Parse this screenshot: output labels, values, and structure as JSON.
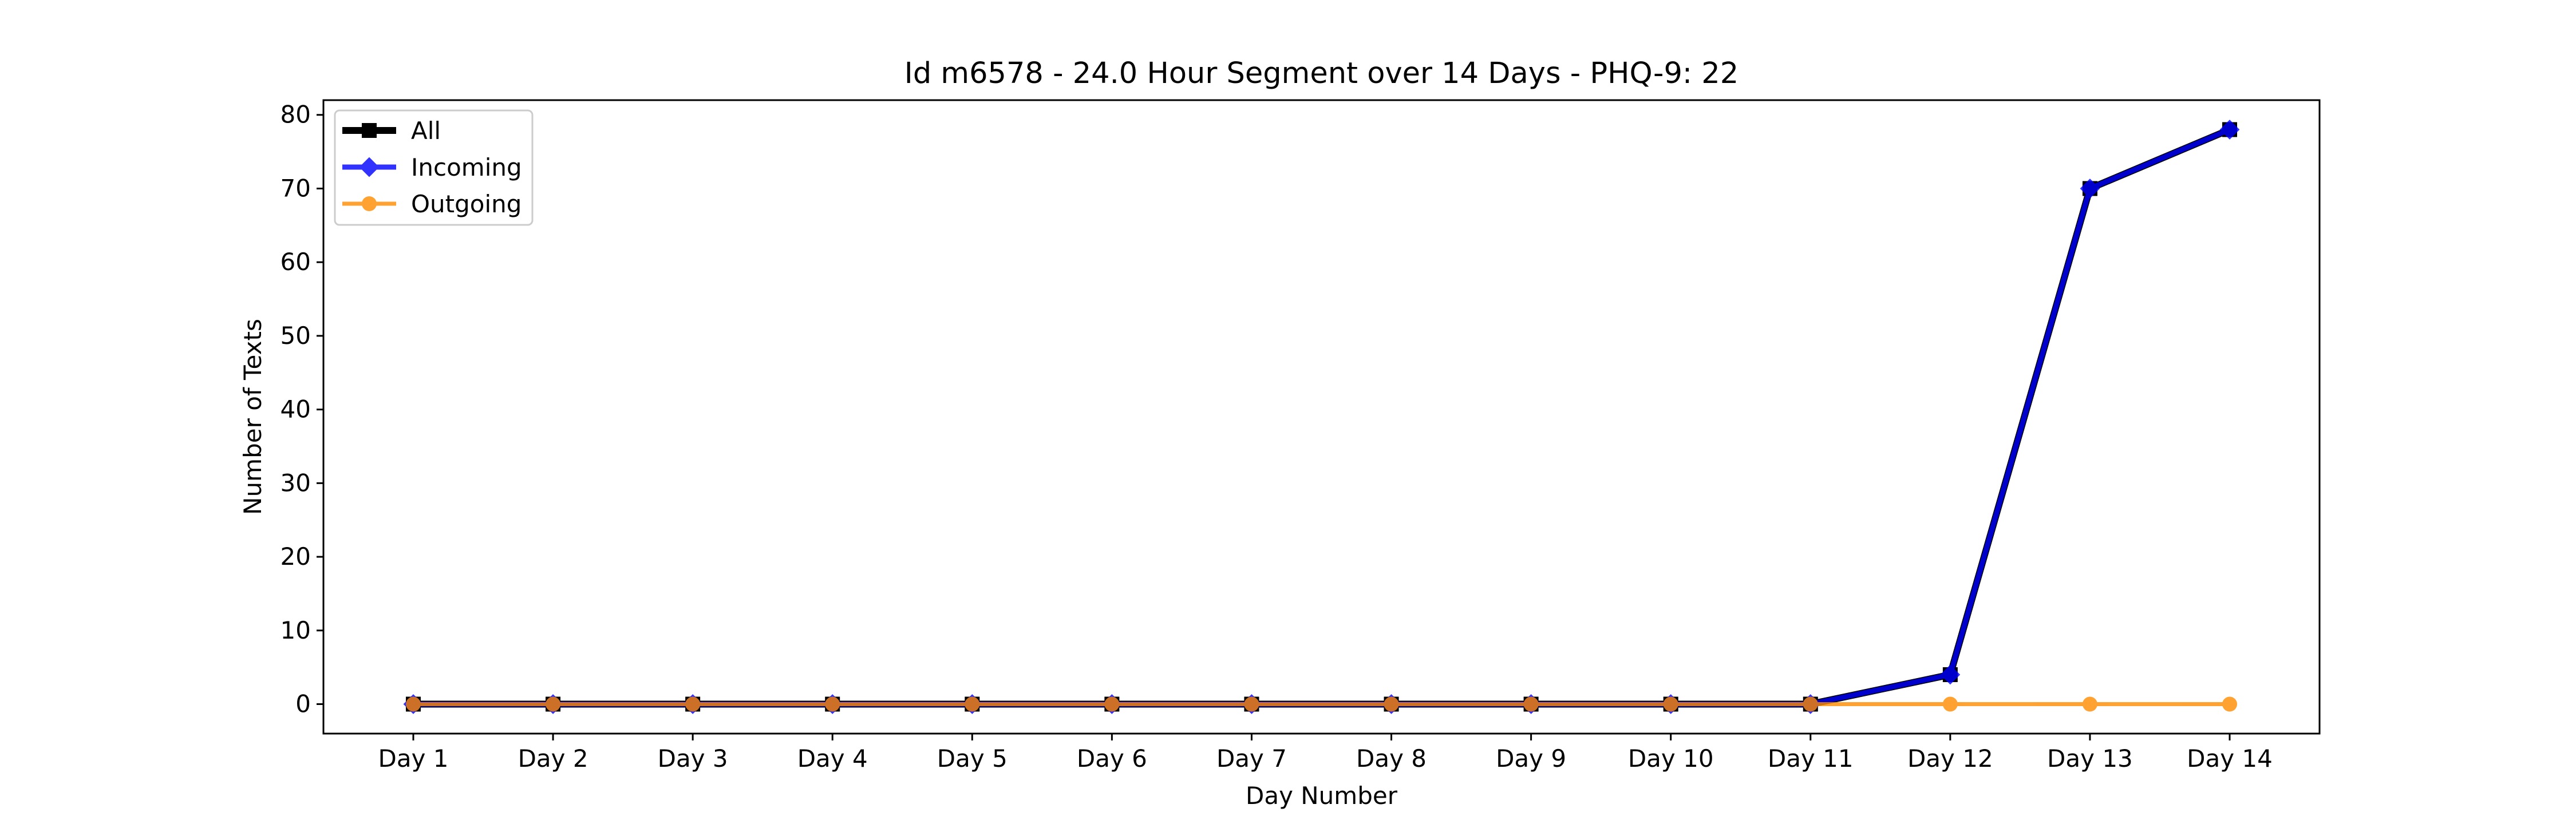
{
  "chart_data": {
    "type": "line",
    "title": "Id m6578 - 24.0 Hour Segment over 14 Days - PHQ-9: 22",
    "xlabel": "Day Number",
    "ylabel": "Number of Texts",
    "categories": [
      "Day 1",
      "Day 2",
      "Day 3",
      "Day 4",
      "Day 5",
      "Day 6",
      "Day 7",
      "Day 8",
      "Day 9",
      "Day 10",
      "Day 11",
      "Day 12",
      "Day 13",
      "Day 14"
    ],
    "ylim": [
      -4,
      82
    ],
    "yticks": [
      0,
      10,
      20,
      30,
      40,
      50,
      60,
      70,
      80
    ],
    "grid": false,
    "legend_position": "top-left",
    "series": [
      {
        "name": "All",
        "values": [
          0,
          0,
          0,
          0,
          0,
          0,
          0,
          0,
          0,
          0,
          0,
          4,
          70,
          78
        ],
        "color": "#000000",
        "marker": "square"
      },
      {
        "name": "Incoming",
        "values": [
          0,
          0,
          0,
          0,
          0,
          0,
          0,
          0,
          0,
          0,
          0,
          4,
          70,
          78
        ],
        "color": "#0000ff",
        "marker": "diamond"
      },
      {
        "name": "Outgoing",
        "values": [
          0,
          0,
          0,
          0,
          0,
          0,
          0,
          0,
          0,
          0,
          0,
          0,
          0,
          0
        ],
        "color": "#ff8c00",
        "marker": "circle"
      }
    ]
  }
}
